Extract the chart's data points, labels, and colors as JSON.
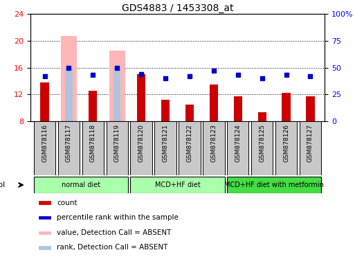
{
  "title": "GDS4883 / 1453308_at",
  "samples": [
    "GSM878116",
    "GSM878117",
    "GSM878118",
    "GSM878119",
    "GSM878120",
    "GSM878121",
    "GSM878122",
    "GSM878123",
    "GSM878124",
    "GSM878125",
    "GSM878126",
    "GSM878127"
  ],
  "count_values": [
    13.8,
    8.0,
    12.5,
    8.0,
    15.0,
    11.2,
    10.5,
    13.5,
    11.7,
    9.3,
    12.2,
    11.7
  ],
  "percentile_values": [
    42,
    50,
    43,
    50,
    44,
    40,
    42,
    47,
    43,
    40,
    43,
    42
  ],
  "absent_value_bars": [
    null,
    20.7,
    null,
    18.5,
    null,
    null,
    null,
    null,
    null,
    null,
    null,
    null
  ],
  "absent_rank_bars": [
    null,
    16.0,
    null,
    15.8,
    null,
    null,
    null,
    null,
    null,
    null,
    null,
    null
  ],
  "ylim_left": [
    8,
    24
  ],
  "ylim_right": [
    0,
    100
  ],
  "yticks_left": [
    8,
    12,
    16,
    20,
    24
  ],
  "yticks_right": [
    0,
    25,
    50,
    75,
    100
  ],
  "ytick_labels_right": [
    "0",
    "25",
    "50",
    "75",
    "100%"
  ],
  "bar_width": 0.35,
  "count_color": "#cc0000",
  "percentile_color": "#0000cc",
  "absent_value_color": "#ffb6b6",
  "absent_rank_color": "#b0c4de",
  "group_defs": [
    {
      "start": 0,
      "end": 3,
      "label": "normal diet",
      "color": "#aaffaa"
    },
    {
      "start": 4,
      "end": 7,
      "label": "MCD+HF diet",
      "color": "#aaffaa"
    },
    {
      "start": 8,
      "end": 11,
      "label": "MCD+HF diet with metformin",
      "color": "#44dd44"
    }
  ],
  "xtick_bg_color": "#c8c8c8",
  "legend": [
    {
      "label": "count",
      "color": "#cc0000"
    },
    {
      "label": "percentile rank within the sample",
      "color": "#0000cc"
    },
    {
      "label": "value, Detection Call = ABSENT",
      "color": "#ffb6b6"
    },
    {
      "label": "rank, Detection Call = ABSENT",
      "color": "#b0c4de"
    }
  ]
}
